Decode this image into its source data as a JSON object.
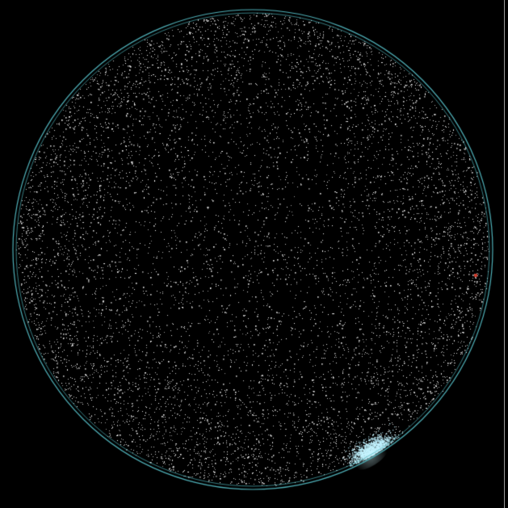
{
  "view": {
    "background_color": "#000000",
    "horizon_ring_color": "#4fb0b8",
    "star_color": "#ffffff",
    "bright_cluster_color": "#bff2ff",
    "marker_color": "#d23a2a",
    "edge_line_color": "#9a9a9a"
  }
}
